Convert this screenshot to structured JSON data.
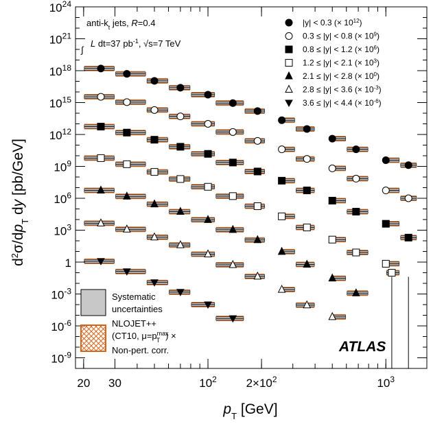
{
  "chart_data": {
    "type": "scatter",
    "x_scale": "log",
    "y_scale": "log",
    "xlabel_main": "p",
    "xlabel_sub": "T",
    "xlabel_unit": " [GeV]",
    "ylabel": "d²σ/dp_T dy [pb/GeV]",
    "xlim": [
      18,
      1700
    ],
    "ylim": [
      1e-10,
      1e+24
    ],
    "x_ticks": [
      {
        "value": 20,
        "label": "20"
      },
      {
        "value": 30,
        "label": "30"
      },
      {
        "value": 100,
        "label": "10",
        "sup": "2"
      },
      {
        "value": 200,
        "label": "2×10",
        "sup": "2"
      },
      {
        "value": 1000,
        "label": "10",
        "sup": "3"
      }
    ],
    "y_ticks": [
      {
        "value": 1e+24,
        "label": "10",
        "sup": "24"
      },
      {
        "value": 1e+21,
        "label": "10",
        "sup": "21"
      },
      {
        "value": 1e+18,
        "label": "10",
        "sup": "18"
      },
      {
        "value": 1000000000000000.0,
        "label": "10",
        "sup": "15"
      },
      {
        "value": 1000000000000.0,
        "label": "10",
        "sup": "12"
      },
      {
        "value": 1000000000.0,
        "label": "10",
        "sup": "9"
      },
      {
        "value": 1000000.0,
        "label": "10",
        "sup": "6"
      },
      {
        "value": 1000.0,
        "label": "10",
        "sup": "3"
      },
      {
        "value": 1,
        "label": "1",
        "sup": ""
      },
      {
        "value": 0.001,
        "label": "10",
        "sup": "-3"
      },
      {
        "value": 1e-06,
        "label": "10",
        "sup": "-6"
      },
      {
        "value": 1e-09,
        "label": "10",
        "sup": "-9"
      }
    ],
    "annotations": {
      "line1": "anti-k",
      "line1_sub": "t",
      "line1_rest": " jets, ",
      "line1_R": "R",
      "line1_tail": "=0.4",
      "line2_int": "∫",
      "line2_L": "L",
      "line2_mid": " dt=37 pb",
      "line2_sup": "-1",
      "line2_tail": ", √s=7 TeV",
      "atlas": "ATLAS"
    },
    "box_legend": {
      "syst_line1": "Systematic",
      "syst_line2": "uncertainties",
      "nlo_line1": "NLOJET++",
      "nlo_line2": "(CT10, μ=p",
      "nlo_line2_sup": "max",
      "nlo_line2_sub": "T",
      "nlo_line2_tail": ") ×",
      "nlo_line3": "Non-pert. corr."
    },
    "colors": {
      "theory_band": "#d4661c",
      "syst_band": "#c8c8c8",
      "marker": "#000000"
    },
    "series": [
      {
        "name": "|y| < 0.3 (× 10^12)",
        "label_main": "|y| < 0.3 (× 10",
        "label_sup": "12",
        "marker": "filled-circle",
        "points": [
          {
            "x": 25,
            "y": 1.6e+18
          },
          {
            "x": 35,
            "y": 5e+17
          },
          {
            "x": 50,
            "y": 1.1e+17
          },
          {
            "x": 70,
            "y": 2.5e+16
          },
          {
            "x": 100,
            "y": 5500000000000000.0
          },
          {
            "x": 138,
            "y": 900000000000000.0
          },
          {
            "x": 190,
            "y": 160000000000000.0
          },
          {
            "x": 260,
            "y": 22000000000000.0
          },
          {
            "x": 360,
            "y": 3300000000000.0
          },
          {
            "x": 500,
            "y": 400000000000.0
          },
          {
            "x": 680,
            "y": 40000000000.0
          },
          {
            "x": 1000,
            "y": 3800000000.0
          },
          {
            "x": 1340,
            "y": 1300000000.0
          }
        ]
      },
      {
        "name": "0.3 ≤ |y| < 0.8 (× 10^9)",
        "label_main": "0.3 ≤ |y| < 0.8 (× 10",
        "label_sup": "9",
        "marker": "open-circle",
        "points": [
          {
            "x": 25,
            "y": 3500000000000000.0
          },
          {
            "x": 35,
            "y": 1100000000000000.0
          },
          {
            "x": 50,
            "y": 200000000000000.0
          },
          {
            "x": 70,
            "y": 50000000000000.0
          },
          {
            "x": 100,
            "y": 10000000000000.0
          },
          {
            "x": 138,
            "y": 1700000000000.0
          },
          {
            "x": 190,
            "y": 250000000000.0
          },
          {
            "x": 260,
            "y": 40000000000.0
          },
          {
            "x": 360,
            "y": 5000000000.0
          },
          {
            "x": 500,
            "y": 650000000.0
          },
          {
            "x": 680,
            "y": 70000000.0
          },
          {
            "x": 1000,
            "y": 5500000.0
          },
          {
            "x": 1340,
            "y": 1000000.0
          }
        ]
      },
      {
        "name": "0.8 ≤ |y| < 1.2 (× 10^6)",
        "label_main": "0.8 ≤ |y| < 1.2 (× 10",
        "label_sup": "6",
        "marker": "filled-square",
        "points": [
          {
            "x": 25,
            "y": 5500000000000.0
          },
          {
            "x": 35,
            "y": 1500000000000.0
          },
          {
            "x": 50,
            "y": 320000000000.0
          },
          {
            "x": 70,
            "y": 70000000000.0
          },
          {
            "x": 100,
            "y": 15000000000.0
          },
          {
            "x": 138,
            "y": 2300000000.0
          },
          {
            "x": 190,
            "y": 330000000.0
          },
          {
            "x": 260,
            "y": 45000000.0
          },
          {
            "x": 360,
            "y": 5500000.0
          },
          {
            "x": 500,
            "y": 600000.0
          },
          {
            "x": 680,
            "y": 55000.0
          },
          {
            "x": 1000,
            "y": 4000.0
          },
          {
            "x": 1340,
            "y": 200.0
          }
        ]
      },
      {
        "name": "1.2 ≤ |y| < 2.1 (× 10^3)",
        "label_main": "1.2 ≤ |y| < 2.1 (× 10",
        "label_sup": "3",
        "marker": "open-square",
        "points": [
          {
            "x": 25,
            "y": 6000000000.0
          },
          {
            "x": 35,
            "y": 1600000000.0
          },
          {
            "x": 50,
            "y": 300000000.0
          },
          {
            "x": 70,
            "y": 65000000.0
          },
          {
            "x": 100,
            "y": 12000000.0
          },
          {
            "x": 138,
            "y": 1600000.0
          },
          {
            "x": 190,
            "y": 180000.0
          },
          {
            "x": 260,
            "y": 20000.0
          },
          {
            "x": 360,
            "y": 1800.0
          },
          {
            "x": 500,
            "y": 130.0
          },
          {
            "x": 680,
            "y": 8.0
          },
          {
            "x": 1000,
            "y": 0.7
          },
          {
            "x": 1080,
            "y": 0.1
          }
        ]
      },
      {
        "name": "2.1 ≤ |y| < 2.8 (× 10^0)",
        "label_main": "2.1 ≤ |y| < 2.8 (× 10",
        "label_sup": "0",
        "marker": "filled-triangle-up",
        "points": [
          {
            "x": 25,
            "y": 5500000.0
          },
          {
            "x": 35,
            "y": 1500000.0
          },
          {
            "x": 50,
            "y": 280000.0
          },
          {
            "x": 70,
            "y": 55000.0
          },
          {
            "x": 100,
            "y": 9500.0
          },
          {
            "x": 138,
            "y": 1100.0
          },
          {
            "x": 190,
            "y": 120.0
          },
          {
            "x": 260,
            "y": 9.5
          },
          {
            "x": 360,
            "y": 0.6
          },
          {
            "x": 500,
            "y": 0.03
          },
          {
            "x": 680,
            "y": 0.0012
          }
        ]
      },
      {
        "name": "2.8 ≤ |y| < 3.6 (× 10^-3)",
        "label_main": "2.8 ≤ |y| < 3.6 (× 10",
        "label_sup": "-3",
        "marker": "open-triangle-up",
        "points": [
          {
            "x": 25,
            "y": 4500.0
          },
          {
            "x": 35,
            "y": 1200.0
          },
          {
            "x": 50,
            "y": 220.0
          },
          {
            "x": 70,
            "y": 40
          },
          {
            "x": 100,
            "y": 5.5
          },
          {
            "x": 138,
            "y": 0.55
          },
          {
            "x": 190,
            "y": 0.045
          },
          {
            "x": 260,
            "y": 0.0026
          },
          {
            "x": 360,
            "y": 9e-05
          },
          {
            "x": 500,
            "y": 7e-06
          }
        ]
      },
      {
        "name": "3.6 ≤ |y| < 4.4 (× 10^-6)",
        "label_main": "3.6 ≤ |y| < 4.4 (× 10",
        "label_sup": "-6",
        "marker": "filled-triangle-down",
        "points": [
          {
            "x": 25,
            "y": 1.2
          },
          {
            "x": 35,
            "y": 0.13
          },
          {
            "x": 50,
            "y": 0.012
          },
          {
            "x": 70,
            "y": 0.0015
          },
          {
            "x": 100,
            "y": 0.0001
          },
          {
            "x": 138,
            "y": 5e-06
          }
        ]
      }
    ]
  }
}
